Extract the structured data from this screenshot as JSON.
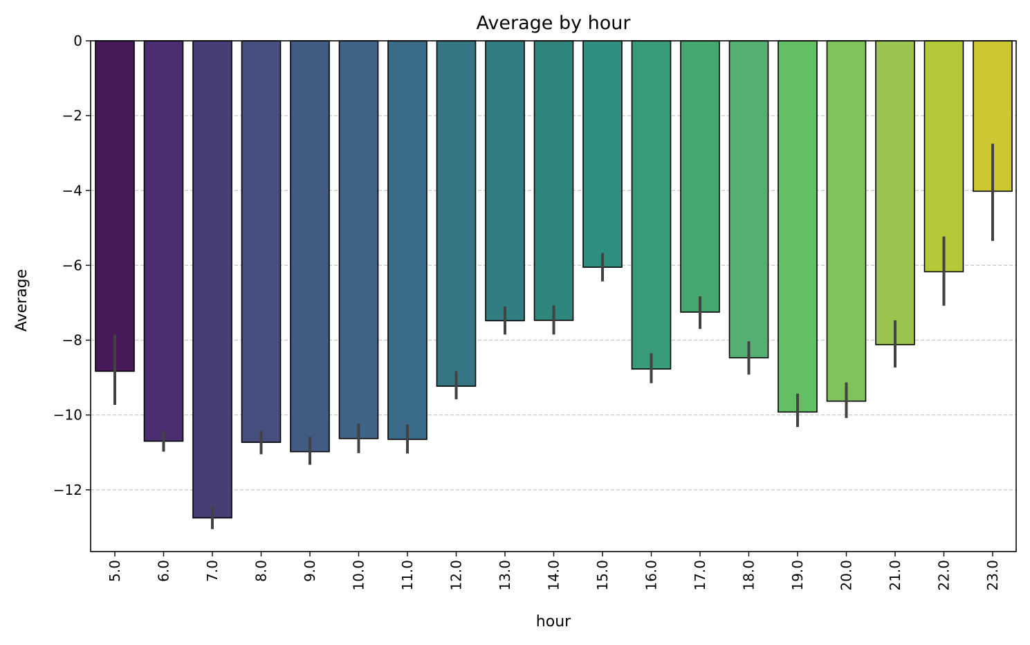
{
  "chart_data": {
    "type": "bar",
    "title": "Average by hour",
    "xlabel": "hour",
    "ylabel": "Average",
    "categories": [
      "5.0",
      "6.0",
      "7.0",
      "8.0",
      "9.0",
      "10.0",
      "11.0",
      "12.0",
      "13.0",
      "14.0",
      "15.0",
      "16.0",
      "17.0",
      "18.0",
      "19.0",
      "20.0",
      "21.0",
      "22.0",
      "23.0"
    ],
    "values": [
      -8.83,
      -10.7,
      -12.75,
      -10.73,
      -10.98,
      -10.63,
      -10.65,
      -9.23,
      -7.48,
      -7.47,
      -6.05,
      -8.77,
      -7.25,
      -8.47,
      -9.92,
      -9.63,
      -8.12,
      -6.17,
      -4.02
    ],
    "error_low": [
      -9.73,
      -10.98,
      -13.05,
      -11.05,
      -11.33,
      -11.02,
      -11.03,
      -9.58,
      -7.85,
      -7.85,
      -6.43,
      -9.15,
      -7.7,
      -8.92,
      -10.32,
      -10.08,
      -8.73,
      -7.08,
      -5.35
    ],
    "error_high": [
      -7.85,
      -10.43,
      -12.42,
      -10.43,
      -10.58,
      -10.23,
      -10.25,
      -8.83,
      -7.1,
      -7.07,
      -5.67,
      -8.35,
      -6.83,
      -8.03,
      -9.43,
      -9.13,
      -7.47,
      -5.23,
      -2.75
    ],
    "ylim": [
      -13.65,
      0
    ],
    "yticks": [
      0,
      -2,
      -4,
      -6,
      -8,
      -10,
      -12
    ],
    "ytick_labels": [
      "0",
      "−2",
      "−4",
      "−6",
      "−8",
      "−10",
      "−12"
    ],
    "grid": "y dashed",
    "colors": [
      "#481a5a",
      "#4b2e70",
      "#483e75",
      "#474f7e",
      "#425b82",
      "#3e6487",
      "#3a6b88",
      "#357584",
      "#327d81",
      "#2e867d",
      "#2f8f7e",
      "#3a9b78",
      "#45a670",
      "#54b072",
      "#63bf63",
      "#7ec35c",
      "#9ac44e",
      "#b4c838",
      "#cdc731"
    ],
    "error_color": "#424242"
  }
}
